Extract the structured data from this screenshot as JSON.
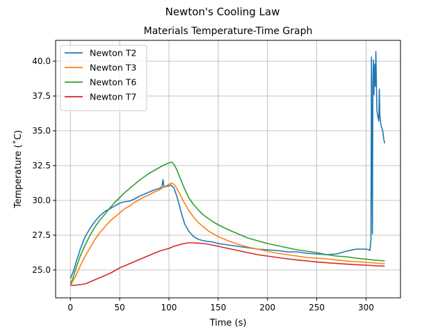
{
  "chart_data": {
    "type": "line",
    "suptitle": "Newton's Cooling Law",
    "title": "Materials Temperature-Time Graph",
    "xlabel": "Time (s)",
    "ylabel": "Temperature (˚C)",
    "xlim": [
      -15,
      335
    ],
    "ylim": [
      23.0,
      41.5
    ],
    "xticks": [
      0,
      50,
      100,
      150,
      200,
      250,
      300
    ],
    "xtick_labels": [
      "0",
      "50",
      "100",
      "150",
      "200",
      "250",
      "300"
    ],
    "yticks": [
      25.0,
      27.5,
      30.0,
      32.5,
      35.0,
      37.5,
      40.0
    ],
    "ytick_labels": [
      "25.0",
      "27.5",
      "30.0",
      "32.5",
      "35.0",
      "37.5",
      "40.0"
    ],
    "grid": true,
    "legend_position": "top-left",
    "series": [
      {
        "name": "Newton T2",
        "color": "#1f77b4",
        "points": [
          [
            0,
            24.4
          ],
          [
            3,
            24.9
          ],
          [
            6,
            25.6
          ],
          [
            10,
            26.5
          ],
          [
            15,
            27.4
          ],
          [
            20,
            28.0
          ],
          [
            25,
            28.5
          ],
          [
            30,
            28.9
          ],
          [
            35,
            29.2
          ],
          [
            40,
            29.4
          ],
          [
            45,
            29.6
          ],
          [
            50,
            29.8
          ],
          [
            55,
            29.9
          ],
          [
            60,
            29.95
          ],
          [
            65,
            30.1
          ],
          [
            70,
            30.3
          ],
          [
            75,
            30.45
          ],
          [
            80,
            30.6
          ],
          [
            85,
            30.75
          ],
          [
            90,
            30.85
          ],
          [
            93,
            31.0
          ],
          [
            94,
            31.5
          ],
          [
            95,
            30.95
          ],
          [
            100,
            31.05
          ],
          [
            102,
            31.1
          ],
          [
            105,
            30.9
          ],
          [
            108,
            30.3
          ],
          [
            110,
            29.8
          ],
          [
            113,
            29.0
          ],
          [
            116,
            28.3
          ],
          [
            120,
            27.8
          ],
          [
            125,
            27.4
          ],
          [
            130,
            27.2
          ],
          [
            135,
            27.1
          ],
          [
            140,
            27.05
          ],
          [
            145,
            27.0
          ],
          [
            150,
            26.9
          ],
          [
            160,
            26.8
          ],
          [
            170,
            26.7
          ],
          [
            180,
            26.6
          ],
          [
            190,
            26.5
          ],
          [
            200,
            26.45
          ],
          [
            210,
            26.4
          ],
          [
            220,
            26.3
          ],
          [
            230,
            26.3
          ],
          [
            240,
            26.2
          ],
          [
            250,
            26.15
          ],
          [
            260,
            26.1
          ],
          [
            270,
            26.15
          ],
          [
            280,
            26.35
          ],
          [
            290,
            26.5
          ],
          [
            300,
            26.5
          ],
          [
            303,
            26.45
          ],
          [
            304,
            26.4
          ],
          [
            305,
            27.2
          ],
          [
            305.5,
            40.3
          ],
          [
            306,
            34.0
          ],
          [
            306.5,
            27.6
          ],
          [
            307,
            38.5
          ],
          [
            307.5,
            40.1
          ],
          [
            308,
            37.6
          ],
          [
            308.5,
            39.2
          ],
          [
            309,
            39.8
          ],
          [
            309.5,
            38.2
          ],
          [
            310,
            40.7
          ],
          [
            311,
            36.5
          ],
          [
            312,
            36.0
          ],
          [
            313,
            35.7
          ],
          [
            313.5,
            38.0
          ],
          [
            314,
            36.2
          ],
          [
            315,
            35.5
          ],
          [
            316,
            35.2
          ],
          [
            317,
            35.0
          ],
          [
            318,
            34.4
          ],
          [
            319,
            34.1
          ]
        ]
      },
      {
        "name": "Newton T3",
        "color": "#ff7f0e",
        "points": [
          [
            0,
            23.9
          ],
          [
            5,
            24.5
          ],
          [
            10,
            25.3
          ],
          [
            15,
            26.0
          ],
          [
            20,
            26.6
          ],
          [
            25,
            27.2
          ],
          [
            30,
            27.7
          ],
          [
            35,
            28.1
          ],
          [
            40,
            28.5
          ],
          [
            45,
            28.8
          ],
          [
            50,
            29.1
          ],
          [
            55,
            29.4
          ],
          [
            60,
            29.6
          ],
          [
            65,
            29.85
          ],
          [
            70,
            30.05
          ],
          [
            75,
            30.25
          ],
          [
            80,
            30.4
          ],
          [
            85,
            30.6
          ],
          [
            90,
            30.75
          ],
          [
            95,
            30.95
          ],
          [
            100,
            31.15
          ],
          [
            103,
            31.25
          ],
          [
            106,
            31.1
          ],
          [
            110,
            30.6
          ],
          [
            115,
            29.9
          ],
          [
            120,
            29.3
          ],
          [
            125,
            28.8
          ],
          [
            130,
            28.4
          ],
          [
            135,
            28.1
          ],
          [
            140,
            27.8
          ],
          [
            145,
            27.6
          ],
          [
            150,
            27.4
          ],
          [
            160,
            27.1
          ],
          [
            170,
            26.85
          ],
          [
            180,
            26.65
          ],
          [
            190,
            26.5
          ],
          [
            200,
            26.35
          ],
          [
            210,
            26.2
          ],
          [
            220,
            26.1
          ],
          [
            230,
            26.0
          ],
          [
            240,
            25.9
          ],
          [
            250,
            25.85
          ],
          [
            260,
            25.8
          ],
          [
            270,
            25.72
          ],
          [
            280,
            25.65
          ],
          [
            290,
            25.6
          ],
          [
            300,
            25.55
          ],
          [
            310,
            25.5
          ],
          [
            319,
            25.45
          ]
        ]
      },
      {
        "name": "Newton T6",
        "color": "#2ca02c",
        "points": [
          [
            0,
            24.0
          ],
          [
            3,
            24.5
          ],
          [
            6,
            25.2
          ],
          [
            10,
            26.0
          ],
          [
            15,
            26.8
          ],
          [
            20,
            27.5
          ],
          [
            25,
            28.1
          ],
          [
            30,
            28.6
          ],
          [
            35,
            29.0
          ],
          [
            40,
            29.45
          ],
          [
            45,
            29.85
          ],
          [
            50,
            30.2
          ],
          [
            55,
            30.55
          ],
          [
            60,
            30.85
          ],
          [
            65,
            31.15
          ],
          [
            70,
            31.45
          ],
          [
            75,
            31.7
          ],
          [
            80,
            31.95
          ],
          [
            85,
            32.15
          ],
          [
            90,
            32.35
          ],
          [
            95,
            32.55
          ],
          [
            100,
            32.7
          ],
          [
            103,
            32.75
          ],
          [
            105,
            32.6
          ],
          [
            108,
            32.2
          ],
          [
            112,
            31.5
          ],
          [
            116,
            30.8
          ],
          [
            120,
            30.2
          ],
          [
            125,
            29.7
          ],
          [
            130,
            29.3
          ],
          [
            135,
            28.95
          ],
          [
            140,
            28.7
          ],
          [
            145,
            28.45
          ],
          [
            150,
            28.25
          ],
          [
            160,
            27.9
          ],
          [
            170,
            27.6
          ],
          [
            180,
            27.3
          ],
          [
            190,
            27.1
          ],
          [
            200,
            26.9
          ],
          [
            210,
            26.75
          ],
          [
            220,
            26.6
          ],
          [
            230,
            26.45
          ],
          [
            240,
            26.35
          ],
          [
            250,
            26.25
          ],
          [
            260,
            26.1
          ],
          [
            270,
            26.0
          ],
          [
            280,
            25.95
          ],
          [
            290,
            25.85
          ],
          [
            300,
            25.78
          ],
          [
            310,
            25.7
          ],
          [
            319,
            25.65
          ]
        ]
      },
      {
        "name": "Newton T7",
        "color": "#d62728",
        "points": [
          [
            0,
            23.9
          ],
          [
            5,
            23.9
          ],
          [
            10,
            23.95
          ],
          [
            15,
            24.0
          ],
          [
            20,
            24.15
          ],
          [
            25,
            24.3
          ],
          [
            30,
            24.45
          ],
          [
            35,
            24.6
          ],
          [
            40,
            24.75
          ],
          [
            45,
            24.95
          ],
          [
            50,
            25.15
          ],
          [
            55,
            25.3
          ],
          [
            60,
            25.45
          ],
          [
            65,
            25.6
          ],
          [
            70,
            25.75
          ],
          [
            75,
            25.9
          ],
          [
            80,
            26.05
          ],
          [
            85,
            26.2
          ],
          [
            90,
            26.35
          ],
          [
            95,
            26.45
          ],
          [
            100,
            26.55
          ],
          [
            105,
            26.7
          ],
          [
            110,
            26.8
          ],
          [
            115,
            26.9
          ],
          [
            120,
            26.95
          ],
          [
            125,
            26.95
          ],
          [
            130,
            26.93
          ],
          [
            135,
            26.9
          ],
          [
            140,
            26.85
          ],
          [
            150,
            26.7
          ],
          [
            160,
            26.55
          ],
          [
            170,
            26.4
          ],
          [
            180,
            26.25
          ],
          [
            190,
            26.1
          ],
          [
            200,
            26.0
          ],
          [
            210,
            25.9
          ],
          [
            220,
            25.8
          ],
          [
            230,
            25.72
          ],
          [
            240,
            25.65
          ],
          [
            250,
            25.58
          ],
          [
            260,
            25.52
          ],
          [
            270,
            25.47
          ],
          [
            280,
            25.42
          ],
          [
            290,
            25.38
          ],
          [
            300,
            25.35
          ],
          [
            310,
            25.3
          ],
          [
            319,
            25.28
          ]
        ]
      }
    ]
  }
}
